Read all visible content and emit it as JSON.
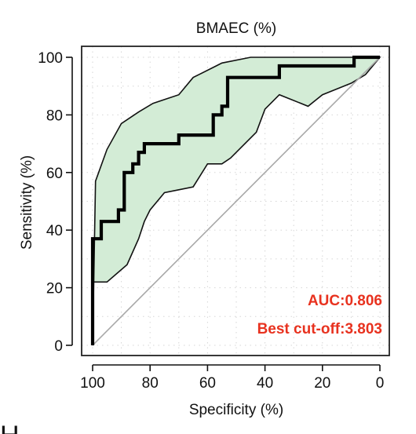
{
  "chart_data": {
    "type": "line",
    "title": "BMAEC (%)",
    "xlabel": "Specificity (%)",
    "ylabel": "Sensitivity (%)",
    "xlim": [
      100,
      0
    ],
    "ylim": [
      0,
      100
    ],
    "x_reversed": true,
    "xticks": [
      "100",
      "80",
      "60",
      "40",
      "20",
      "0"
    ],
    "yticks": [
      "0",
      "20",
      "40",
      "60",
      "80",
      "100"
    ],
    "grid": true,
    "colors": {
      "roc_line": "#000000",
      "ci_fill": "#d3ecd6",
      "ci_border": "#111111",
      "reference_line": "#a8a8a8",
      "annotation": "#e8321f"
    },
    "series": [
      {
        "x": [
          100,
          100,
          100,
          97,
          97,
          91,
          91,
          89,
          89,
          86,
          86,
          84,
          84,
          82,
          82,
          80,
          80,
          70,
          70,
          58,
          58,
          55,
          55,
          53,
          53,
          35,
          35,
          9,
          9,
          0
        ],
        "y": [
          0,
          37,
          37,
          37,
          43,
          43,
          47,
          47,
          60,
          60,
          63,
          63,
          67,
          67,
          70,
          70,
          70,
          70,
          73,
          73,
          80,
          80,
          83,
          83,
          93,
          93,
          97,
          97,
          100,
          100
        ]
      }
    ],
    "ci_band": {
      "upper": {
        "x": [
          100,
          99,
          95,
          90,
          84,
          79,
          70,
          65,
          57,
          55,
          45,
          40,
          20,
          0
        ],
        "y": [
          0,
          57,
          68,
          77,
          81,
          84,
          87,
          93,
          97,
          98,
          100,
          100,
          100,
          100
        ]
      },
      "lower": {
        "x": [
          0,
          5,
          10,
          15,
          20,
          25,
          35,
          40,
          43,
          47,
          52,
          55,
          60,
          65,
          70,
          75,
          80,
          82,
          84,
          88,
          95,
          100
        ],
        "y": [
          100,
          94,
          91,
          89,
          87,
          83,
          87,
          82,
          74,
          70,
          65,
          63,
          63,
          55,
          54,
          53,
          47,
          43,
          37,
          28,
          22,
          22
        ]
      }
    },
    "reference_line": {
      "x": [
        100,
        0
      ],
      "y": [
        0,
        100
      ]
    },
    "annotations": [
      "AUC:0.806",
      "Best cut-off:3.803"
    ],
    "footer_text": "H"
  }
}
